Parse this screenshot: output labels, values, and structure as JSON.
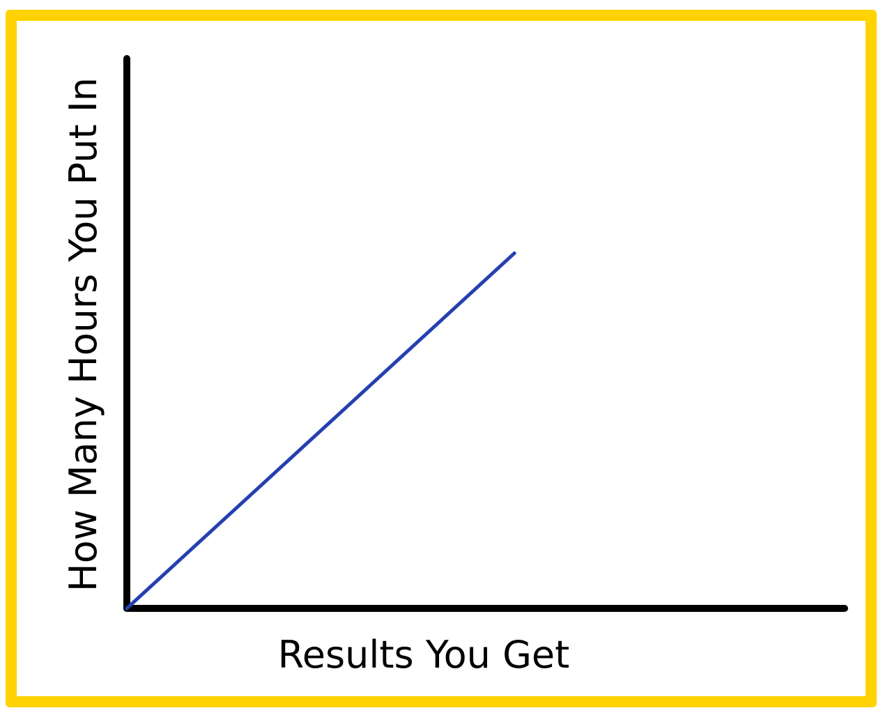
{
  "colors": {
    "frame": "#FFD200",
    "axes": "#000000",
    "line": "#2440B0",
    "background": "#FFFFFF"
  },
  "chart_data": {
    "type": "line",
    "title": "",
    "xlabel": "Results You Get",
    "ylabel": "How Many Hours You Put In",
    "xlim": [
      0,
      100
    ],
    "ylim": [
      0,
      100
    ],
    "grid": false,
    "ticks": false,
    "series": [
      {
        "x": [
          0,
          54
        ],
        "y": [
          0,
          64.6
        ]
      }
    ]
  }
}
